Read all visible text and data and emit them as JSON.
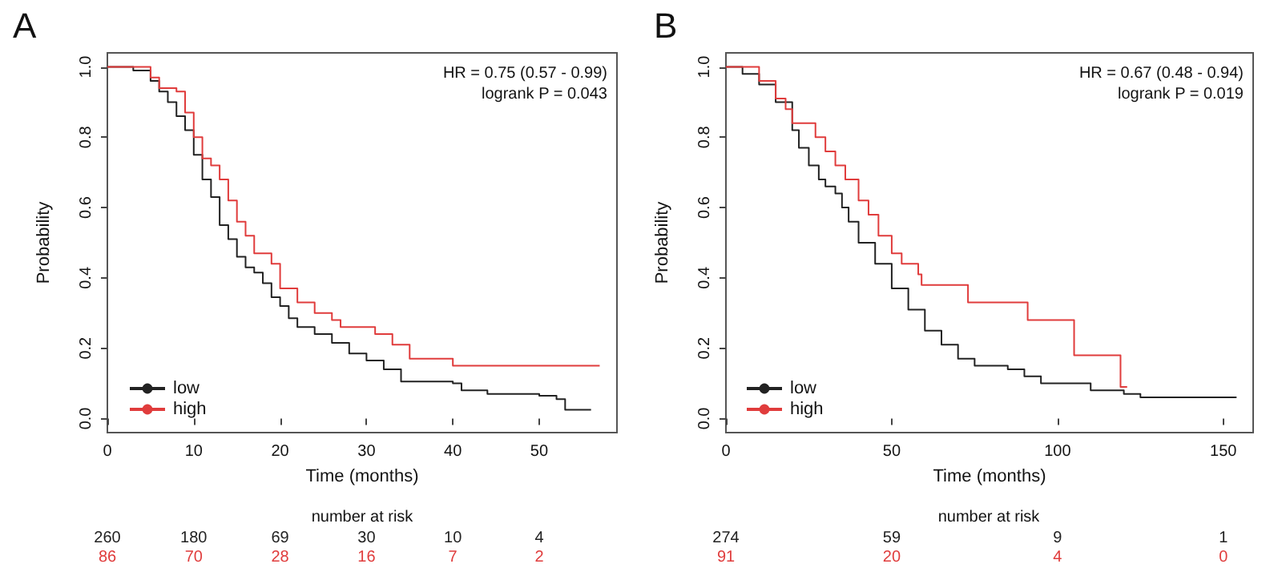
{
  "chart_data": [
    {
      "type": "step",
      "title": "A",
      "xlabel": "Time (months)",
      "ylabel": "Probability",
      "legend": "bottom left",
      "grid": false,
      "xlim": [
        0,
        59
      ],
      "xticks": [
        0,
        10,
        20,
        30,
        40,
        50
      ],
      "ylim": [
        -0.04,
        1.04
      ],
      "yticks": [
        {
          "value": 0,
          "label": "0.0"
        },
        {
          "value": 0.2,
          "label": "0.2"
        },
        {
          "value": 0.4,
          "label": "0.4"
        },
        {
          "value": 0.6,
          "label": "0.6"
        },
        {
          "value": 0.8,
          "label": "0.8"
        },
        {
          "value": 1,
          "label": "1.0"
        }
      ],
      "annotations": [
        "HR = 0.75 (0.57 - 0.99)",
        "logrank P = 0.043",
        "number at risk",
        "260",
        "180",
        "69",
        "30",
        "10",
        "4",
        "86",
        "70",
        "28",
        "16",
        "7",
        "2"
      ],
      "series": [
        {
          "name": "low",
          "color": "#222222",
          "x": [
            0,
            3,
            5,
            6,
            7,
            8,
            9,
            10,
            11,
            12,
            13,
            14,
            15,
            16,
            17,
            18,
            19,
            20,
            21,
            22,
            24,
            26,
            28,
            30,
            32,
            34,
            40,
            41,
            44,
            50,
            52,
            53,
            56
          ],
          "values": [
            1.0,
            0.99,
            0.96,
            0.93,
            0.9,
            0.86,
            0.82,
            0.75,
            0.68,
            0.63,
            0.55,
            0.51,
            0.46,
            0.43,
            0.415,
            0.385,
            0.345,
            0.32,
            0.285,
            0.26,
            0.24,
            0.215,
            0.185,
            0.165,
            0.14,
            0.105,
            0.1,
            0.08,
            0.07,
            0.065,
            0.055,
            0.025,
            0.025
          ]
        },
        {
          "name": "high",
          "color": "#e03c3c",
          "x": [
            0,
            5,
            6,
            8,
            9,
            10,
            11,
            12,
            13,
            14,
            15,
            16,
            17,
            19,
            20,
            22,
            24,
            26,
            27,
            31,
            33,
            35,
            40,
            57
          ],
          "values": [
            1.0,
            0.97,
            0.94,
            0.93,
            0.87,
            0.8,
            0.74,
            0.72,
            0.68,
            0.62,
            0.56,
            0.52,
            0.47,
            0.44,
            0.37,
            0.33,
            0.3,
            0.28,
            0.26,
            0.24,
            0.21,
            0.17,
            0.15,
            0.15
          ]
        }
      ]
    },
    {
      "type": "step",
      "title": "B",
      "xlabel": "Time (months)",
      "ylabel": "Probability",
      "legend": "bottom left",
      "grid": false,
      "xlim": [
        0,
        159
      ],
      "xticks": [
        0,
        50,
        100,
        150
      ],
      "ylim": [
        -0.04,
        1.04
      ],
      "yticks": [
        {
          "value": 0,
          "label": "0.0"
        },
        {
          "value": 0.2,
          "label": "0.2"
        },
        {
          "value": 0.4,
          "label": "0.4"
        },
        {
          "value": 0.6,
          "label": "0.6"
        },
        {
          "value": 0.8,
          "label": "0.8"
        },
        {
          "value": 1,
          "label": "1.0"
        }
      ],
      "annotations": [
        "HR = 0.67 (0.48 - 0.94)",
        "logrank P = 0.019",
        "number at risk",
        "274",
        "59",
        "9",
        "1",
        "91",
        "20",
        "4",
        "0"
      ],
      "series": [
        {
          "name": "low",
          "color": "#222222",
          "x": [
            0,
            5,
            10,
            15,
            20,
            22,
            25,
            28,
            30,
            33,
            35,
            37,
            40,
            45,
            50,
            55,
            60,
            65,
            70,
            75,
            85,
            90,
            95,
            110,
            120,
            125,
            154
          ],
          "values": [
            1.0,
            0.98,
            0.95,
            0.9,
            0.82,
            0.77,
            0.72,
            0.68,
            0.66,
            0.64,
            0.6,
            0.56,
            0.5,
            0.44,
            0.37,
            0.31,
            0.25,
            0.21,
            0.17,
            0.15,
            0.14,
            0.12,
            0.1,
            0.08,
            0.07,
            0.06,
            0.06
          ]
        },
        {
          "name": "high",
          "color": "#e03c3c",
          "x": [
            0,
            10,
            15,
            18,
            20,
            27,
            30,
            33,
            36,
            40,
            43,
            46,
            50,
            53,
            58,
            59,
            73,
            91,
            105,
            119,
            121
          ],
          "values": [
            1.0,
            0.96,
            0.91,
            0.88,
            0.84,
            0.8,
            0.76,
            0.72,
            0.68,
            0.62,
            0.58,
            0.52,
            0.47,
            0.44,
            0.41,
            0.38,
            0.33,
            0.28,
            0.18,
            0.09,
            0.09
          ]
        }
      ]
    }
  ]
}
